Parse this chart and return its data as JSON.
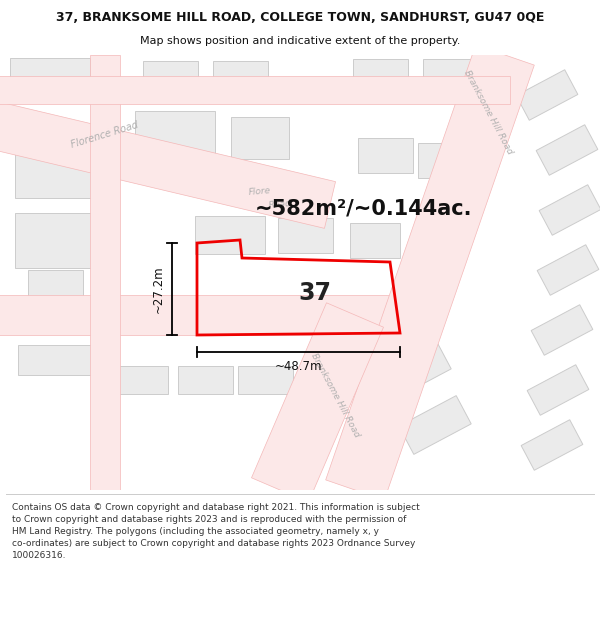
{
  "title_line1": "37, BRANKSOME HILL ROAD, COLLEGE TOWN, SANDHURST, GU47 0QE",
  "title_line2": "Map shows position and indicative extent of the property.",
  "area_text": "~582m²/~0.144ac.",
  "width_label": "~48.7m",
  "height_label": "~27.2m",
  "number_label": "37",
  "footer_text": "Contains OS data © Crown copyright and database right 2021. This information is subject to Crown copyright and database rights 2023 and is reproduced with the permission of HM Land Registry. The polygons (including the associated geometry, namely x, y co-ordinates) are subject to Crown copyright and database rights 2023 Ordnance Survey 100026316.",
  "map_bg": "#ffffff",
  "road_fill": "#fce8e8",
  "road_edge": "#f4b8b8",
  "block_fill": "#ebebeb",
  "block_edge": "#cccccc",
  "road_label_color": "#b0b0b0",
  "plot_color": "#ee0000",
  "dim_color": "#111111",
  "title_color": "#111111",
  "footer_color": "#333333",
  "title_fontsize": 9.0,
  "subtitle_fontsize": 8.0,
  "area_fontsize": 15,
  "dim_fontsize": 8.5,
  "number_fontsize": 17,
  "footer_fontsize": 6.5
}
